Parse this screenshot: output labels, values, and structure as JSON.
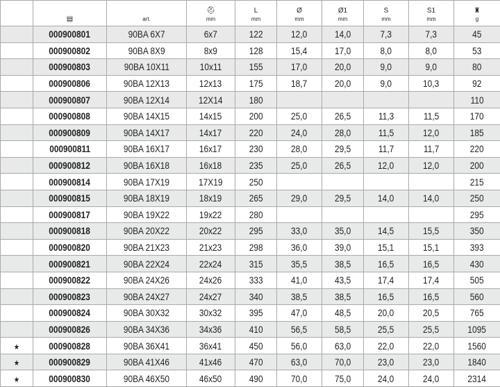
{
  "header": {
    "icon_col0": "",
    "code_icon": "catalog-icon",
    "art": "art.",
    "socket_icon": "socket-icon",
    "socket_unit": "mm",
    "L": "L",
    "L_unit": "mm",
    "d": "Ø",
    "d_unit": "mm",
    "d1": "Ø1",
    "d1_unit": "mm",
    "s": "S",
    "s_unit": "mm",
    "s1": "S1",
    "s1_unit": "mm",
    "weight_icon": "weight-icon",
    "weight_unit": "g"
  },
  "rows": [
    {
      "mark": "",
      "code": "000900801",
      "art": "90BA 6X7",
      "size": "6x7",
      "L": "122",
      "d": "12,0",
      "d1": "14,0",
      "s": "7,3",
      "s1": "7,3",
      "g": "45"
    },
    {
      "mark": "",
      "code": "000900802",
      "art": "90BA 8X9",
      "size": "8x9",
      "L": "128",
      "d": "15,4",
      "d1": "17,0",
      "s": "8,0",
      "s1": "8,0",
      "g": "53"
    },
    {
      "mark": "",
      "code": "000900803",
      "art": "90BA 10X11",
      "size": "10x11",
      "L": "155",
      "d": "17,0",
      "d1": "20,0",
      "s": "9,0",
      "s1": "9,0",
      "g": "80"
    },
    {
      "mark": "",
      "code": "000900806",
      "art": "90BA 12X13",
      "size": "12x13",
      "L": "175",
      "d": "18,7",
      "d1": "20,0",
      "s": "9,0",
      "s1": "10,3",
      "g": "92"
    },
    {
      "mark": "",
      "code": "000900807",
      "art": "90BA 12X14",
      "size": "12X14",
      "L": "180",
      "d": "",
      "d1": "",
      "s": "",
      "s1": "",
      "g": "110"
    },
    {
      "mark": "",
      "code": "000900808",
      "art": "90BA 14X15",
      "size": "14x15",
      "L": "200",
      "d": "25,0",
      "d1": "26,5",
      "s": "11,3",
      "s1": "11,5",
      "g": "170"
    },
    {
      "mark": "",
      "code": "000900809",
      "art": "90BA 14X17",
      "size": "14x17",
      "L": "220",
      "d": "24,0",
      "d1": "28,0",
      "s": "11,5",
      "s1": "12,0",
      "g": "185"
    },
    {
      "mark": "",
      "code": "000900811",
      "art": "90BA 16X17",
      "size": "16x17",
      "L": "230",
      "d": "28,0",
      "d1": "29,5",
      "s": "11,7",
      "s1": "11,7",
      "g": "220"
    },
    {
      "mark": "",
      "code": "000900812",
      "art": "90BA 16X18",
      "size": "16x18",
      "L": "235",
      "d": "25,0",
      "d1": "26,5",
      "s": "12,0",
      "s1": "12,0",
      "g": "200"
    },
    {
      "mark": "",
      "code": "000900814",
      "art": "90BA 17X19",
      "size": "17X19",
      "L": "250",
      "d": "",
      "d1": "",
      "s": "",
      "s1": "",
      "g": "215"
    },
    {
      "mark": "",
      "code": "000900815",
      "art": "90BA 18X19",
      "size": "18x19",
      "L": "265",
      "d": "29,0",
      "d1": "29,5",
      "s": "14,0",
      "s1": "14,0",
      "g": "250"
    },
    {
      "mark": "",
      "code": "000900817",
      "art": "90BA 19X22",
      "size": "19x22",
      "L": "280",
      "d": "",
      "d1": "",
      "s": "",
      "s1": "",
      "g": "295"
    },
    {
      "mark": "",
      "code": "000900818",
      "art": "90BA 20X22",
      "size": "20x22",
      "L": "295",
      "d": "33,0",
      "d1": "35,0",
      "s": "14,5",
      "s1": "15,5",
      "g": "350"
    },
    {
      "mark": "",
      "code": "000900820",
      "art": "90BA 21X23",
      "size": "21x23",
      "L": "298",
      "d": "36,0",
      "d1": "39,0",
      "s": "15,1",
      "s1": "15,1",
      "g": "393"
    },
    {
      "mark": "",
      "code": "000900821",
      "art": "90BA 22X24",
      "size": "22x24",
      "L": "315",
      "d": "35,5",
      "d1": "38,5",
      "s": "16,5",
      "s1": "16,5",
      "g": "430"
    },
    {
      "mark": "",
      "code": "000900822",
      "art": "90BA 24X26",
      "size": "24x26",
      "L": "333",
      "d": "41,0",
      "d1": "43,5",
      "s": "17,4",
      "s1": "17,4",
      "g": "505"
    },
    {
      "mark": "",
      "code": "000900823",
      "art": "90BA 24X27",
      "size": "24x27",
      "L": "340",
      "d": "38,5",
      "d1": "38,5",
      "s": "16,5",
      "s1": "16,5",
      "g": "560"
    },
    {
      "mark": "",
      "code": "000900824",
      "art": "90BA 30X32",
      "size": "30x32",
      "L": "395",
      "d": "47,0",
      "d1": "48,5",
      "s": "20,0",
      "s1": "20,5",
      "g": "765"
    },
    {
      "mark": "",
      "code": "000900826",
      "art": "90BA 34X36",
      "size": "34x36",
      "L": "410",
      "d": "56,5",
      "d1": "58,5",
      "s": "25,5",
      "s1": "25,5",
      "g": "1095"
    },
    {
      "mark": "★",
      "code": "000900828",
      "art": "90BA 36X41",
      "size": "36x41",
      "L": "450",
      "d": "56,0",
      "d1": "63,0",
      "s": "22,0",
      "s1": "22,0",
      "g": "1560"
    },
    {
      "mark": "★",
      "code": "000900829",
      "art": "90BA 41X46",
      "size": "41x46",
      "L": "470",
      "d": "63,0",
      "d1": "70,0",
      "s": "23,0",
      "s1": "23,0",
      "g": "1840"
    },
    {
      "mark": "★",
      "code": "000900830",
      "art": "90BA 46X50",
      "size": "46x50",
      "L": "490",
      "d": "70,0",
      "d1": "75,0",
      "s": "24,0",
      "s1": "24,0",
      "g": "2314"
    }
  ]
}
